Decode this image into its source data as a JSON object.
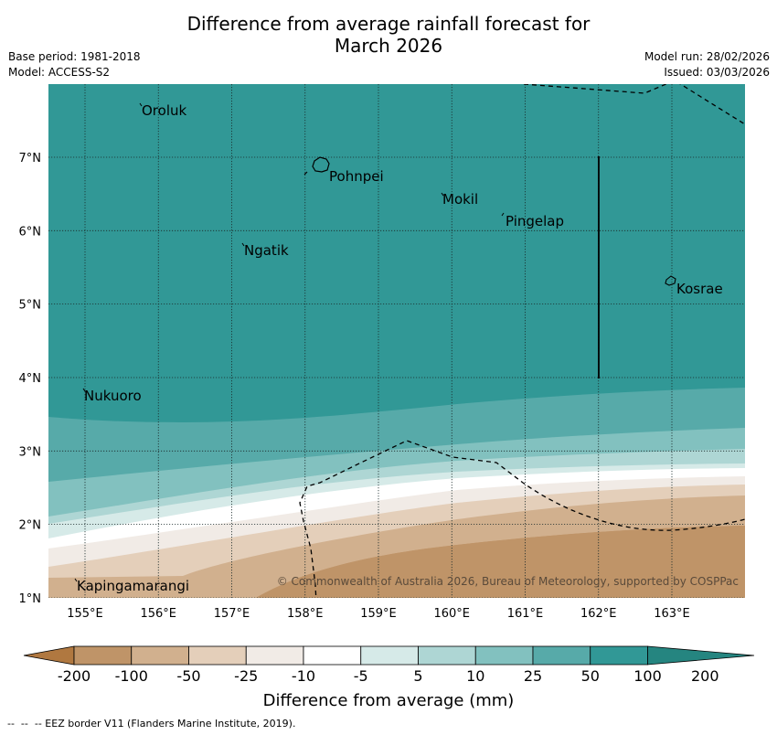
{
  "title": {
    "line1": "Difference from average rainfall forecast for",
    "line2": "March 2026"
  },
  "meta_left": {
    "base_period": "Base period: 1981-2018",
    "model": "Model: ACCESS-S2"
  },
  "meta_right": {
    "model_run": "Model run: 28/02/2026",
    "issued": "Issued: 03/03/2026"
  },
  "map": {
    "lat_labels": [
      "7°N",
      "6°N",
      "5°N",
      "4°N",
      "3°N",
      "2°N",
      "1°N"
    ],
    "lon_labels": [
      "155°E",
      "156°E",
      "157°E",
      "158°E",
      "159°E",
      "160°E",
      "161°E",
      "162°E",
      "163°E"
    ],
    "places": [
      "Oroluk",
      "Pohnpei",
      "Mokil",
      "Pingelap",
      "Ngatik",
      "Kosrae",
      "Nukuoro",
      "Kapingamarangi"
    ],
    "copyright": "© Commonwealth of Australia 2026, Bureau of Meteorology, supported by COSPPac"
  },
  "colorbar": {
    "labels": [
      "-200",
      "-100",
      "-50",
      "-25",
      "-10",
      "-5",
      "5",
      "10",
      "25",
      "50",
      "100",
      "200"
    ],
    "colors": [
      "#b07840",
      "#bf9468",
      "#d1b08e",
      "#e4cfba",
      "#f1ebe6",
      "#ffffff",
      "#d6eae8",
      "#aed6d4",
      "#82c1bf",
      "#57aaa9",
      "#319896",
      "#258580"
    ],
    "axis_label": "Difference from average (mm)"
  },
  "footer": "--  --  -- EEZ border V11 (Flanders Marine Institute, 2019)."
}
